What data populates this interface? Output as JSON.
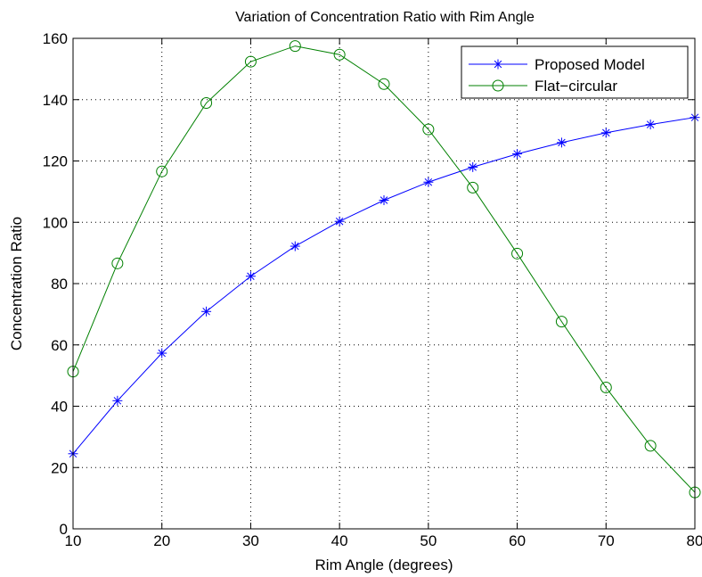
{
  "chart_data": {
    "type": "line",
    "title": "Variation of Concentration Ratio with Rim Angle",
    "xlabel": "Rim Angle (degrees)",
    "ylabel": "Concentration Ratio",
    "xlim": [
      10,
      80
    ],
    "ylim": [
      0,
      160
    ],
    "xticks": [
      10,
      20,
      30,
      40,
      50,
      60,
      70,
      80
    ],
    "yticks": [
      0,
      20,
      40,
      60,
      80,
      100,
      120,
      140,
      160
    ],
    "grid": true,
    "grid_style": "dotted",
    "legend_position": "top-right",
    "x": [
      10,
      15,
      20,
      25,
      30,
      35,
      40,
      45,
      50,
      55,
      60,
      65,
      70,
      75,
      80
    ],
    "series": [
      {
        "name": "Proposed Model",
        "marker": "asterisk",
        "color": "#0000ff",
        "values": [
          24.5,
          41.8,
          57.3,
          70.9,
          82.4,
          92.2,
          100.3,
          107.2,
          113.1,
          118.0,
          122.3,
          126.0,
          129.2,
          131.9,
          134.2
        ]
      },
      {
        "name": "Flat−circular",
        "marker": "circle",
        "color": "#008000",
        "values": [
          51.3,
          86.6,
          116.6,
          138.9,
          152.4,
          157.5,
          154.7,
          145.1,
          130.3,
          111.3,
          89.8,
          67.6,
          46.1,
          27.1,
          11.9
        ]
      }
    ]
  }
}
